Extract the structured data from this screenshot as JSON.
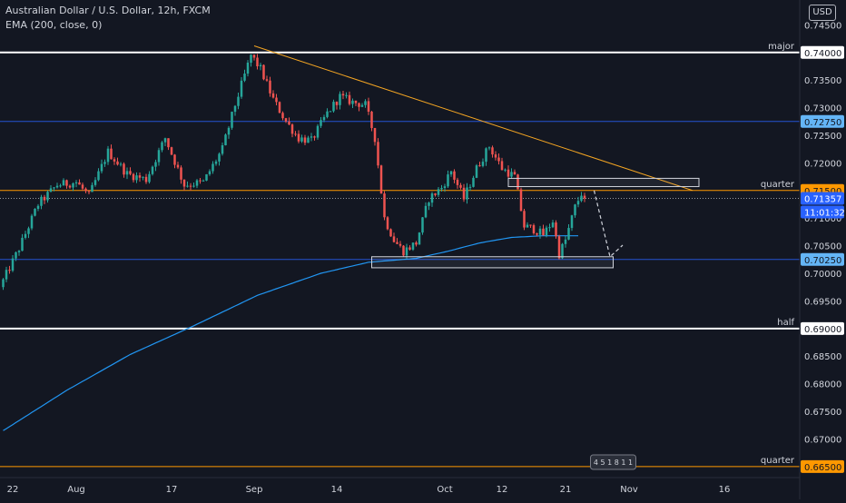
{
  "legend": {
    "symbol": "Australian Dollar / U.S. Dollar, 12h, FXCM",
    "indicator": "EMA (200, close, 0)"
  },
  "currency_label": "USD",
  "colors": {
    "background": "#131722",
    "up": "#26a69a",
    "down": "#ef5350",
    "ema": "#2196f3",
    "trendline": "#f5a623",
    "level_white": "#ffffff",
    "level_blue": "#2962ff",
    "level_orange": "#ff9800",
    "axis_text": "#d1d4dc"
  },
  "chart_data": {
    "type": "candlestick",
    "y_axis": {
      "range": [
        0.663,
        0.7495
      ],
      "ticks": [
        "0.74500",
        "0.74000",
        "0.73500",
        "0.73000",
        "0.72500",
        "0.72000",
        "0.71500",
        "0.71000",
        "0.70500",
        "0.70000",
        "0.69500",
        "0.69000",
        "0.68500",
        "0.68000",
        "0.67500",
        "0.67000",
        "0.66500"
      ]
    },
    "x_axis": {
      "ticks": [
        {
          "label": "22",
          "bar": 3
        },
        {
          "label": "Aug",
          "bar": 23
        },
        {
          "label": "17",
          "bar": 53
        },
        {
          "label": "Sep",
          "bar": 79
        },
        {
          "label": "14",
          "bar": 105
        },
        {
          "label": "Oct",
          "bar": 139
        },
        {
          "label": "12",
          "bar": 157
        },
        {
          "label": "21",
          "bar": 177
        },
        {
          "label": "Nov",
          "bar": 197
        },
        {
          "label": "16",
          "bar": 227
        }
      ]
    },
    "waypoints": [
      [
        0,
        0.6975
      ],
      [
        6,
        0.7045
      ],
      [
        12,
        0.7125
      ],
      [
        18,
        0.716
      ],
      [
        24,
        0.7165
      ],
      [
        28,
        0.714
      ],
      [
        34,
        0.722
      ],
      [
        40,
        0.718
      ],
      [
        46,
        0.717
      ],
      [
        52,
        0.7245
      ],
      [
        58,
        0.716
      ],
      [
        64,
        0.7165
      ],
      [
        70,
        0.7225
      ],
      [
        74,
        0.7305
      ],
      [
        79,
        0.7395
      ],
      [
        82,
        0.737
      ],
      [
        86,
        0.7315
      ],
      [
        90,
        0.7275
      ],
      [
        94,
        0.7245
      ],
      [
        98,
        0.724
      ],
      [
        103,
        0.729
      ],
      [
        107,
        0.732
      ],
      [
        111,
        0.731
      ],
      [
        115,
        0.7305
      ],
      [
        118,
        0.7245
      ],
      [
        121,
        0.71
      ],
      [
        124,
        0.706
      ],
      [
        127,
        0.704
      ],
      [
        131,
        0.7055
      ],
      [
        135,
        0.7135
      ],
      [
        139,
        0.7155
      ],
      [
        142,
        0.7185
      ],
      [
        146,
        0.7135
      ],
      [
        150,
        0.719
      ],
      [
        154,
        0.723
      ],
      [
        158,
        0.719
      ],
      [
        162,
        0.7175
      ],
      [
        165,
        0.7085
      ],
      [
        168,
        0.708
      ],
      [
        171,
        0.707
      ],
      [
        174,
        0.7095
      ],
      [
        176,
        0.7035
      ],
      [
        178,
        0.706
      ],
      [
        181,
        0.712
      ],
      [
        183,
        0.7145
      ]
    ],
    "ema": [
      [
        0,
        0.6715
      ],
      [
        20,
        0.6788
      ],
      [
        40,
        0.6853
      ],
      [
        60,
        0.6905
      ],
      [
        80,
        0.696
      ],
      [
        100,
        0.7
      ],
      [
        115,
        0.702
      ],
      [
        130,
        0.7027
      ],
      [
        140,
        0.704
      ],
      [
        150,
        0.7055
      ],
      [
        160,
        0.7065
      ],
      [
        170,
        0.7068
      ],
      [
        181,
        0.7068
      ]
    ],
    "horizontal_levels": [
      {
        "label": "major",
        "value": 0.74,
        "axis_tag": "0.74000",
        "style": "white"
      },
      {
        "label": "",
        "value": 0.7275,
        "axis_tag": "0.72750",
        "style": "blue"
      },
      {
        "label": "quarter",
        "value": 0.715,
        "axis_tag": "0.71500",
        "style": "orange"
      },
      {
        "label": "",
        "value": 0.7025,
        "axis_tag": "0.70250",
        "style": "blue"
      },
      {
        "label": "half",
        "value": 0.69,
        "axis_tag": "0.69000",
        "style": "white"
      },
      {
        "label": "quarter",
        "value": 0.665,
        "axis_tag": "0.66500",
        "style": "orange"
      }
    ],
    "current_price": {
      "value": 0.71357,
      "label": "0.71357",
      "countdown": "11:01:32"
    },
    "trendline": {
      "from": [
        79,
        0.7412
      ],
      "to": [
        217,
        0.715
      ]
    },
    "zones": [
      {
        "from_bar": 159,
        "to_bar": 219,
        "top": 0.7172,
        "bottom": 0.7157
      },
      {
        "from_bar": 116,
        "to_bar": 192,
        "top": 0.703,
        "bottom": 0.701
      }
    ],
    "projection": [
      [
        186,
        0.715
      ],
      [
        191,
        0.703
      ],
      [
        195,
        0.7051
      ]
    ],
    "event_marker": {
      "bar": 192,
      "value": 0.6658,
      "text": "4 5 1 8 1 1"
    }
  }
}
